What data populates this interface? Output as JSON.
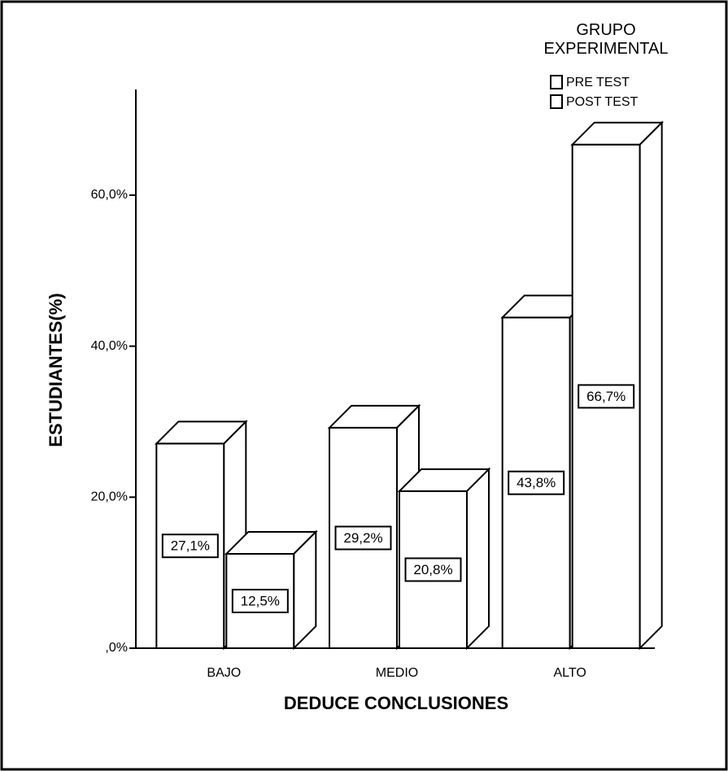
{
  "chart_data": {
    "type": "bar3d",
    "legend_title": "GRUPO EXPERIMENTAL",
    "x_label": "DEDUCE CONCLUSIONES",
    "y_label": "ESTUDIANTES(%)",
    "categories": [
      "BAJO",
      "MEDIO",
      "ALTO"
    ],
    "series": [
      {
        "name": "PRE TEST",
        "color": "#ffffff",
        "values": [
          27.1,
          29.2,
          43.8
        ],
        "value_labels": [
          "27,1%",
          "29,2%",
          "43,8%"
        ]
      },
      {
        "name": "POST TEST",
        "color": "#ffffff",
        "values": [
          12.5,
          20.8,
          66.7
        ],
        "value_labels": [
          "12,5%",
          "20,8%",
          "66,7%"
        ]
      }
    ],
    "ylim": [
      0,
      74
    ],
    "yticks": [
      {
        "value": 0,
        "label": ",0%"
      },
      {
        "value": 20,
        "label": "20,0%"
      },
      {
        "value": 40,
        "label": "40,0%"
      },
      {
        "value": 60,
        "label": "60,0%"
      }
    ],
    "legend": "top-right"
  }
}
